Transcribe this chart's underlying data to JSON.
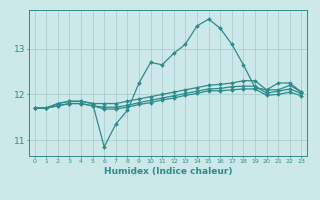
{
  "x": [
    0,
    1,
    2,
    3,
    4,
    5,
    6,
    7,
    8,
    9,
    10,
    11,
    12,
    13,
    14,
    15,
    16,
    17,
    18,
    19,
    20,
    21,
    22,
    23
  ],
  "line1": [
    11.7,
    11.7,
    11.8,
    11.85,
    11.85,
    11.8,
    10.85,
    11.35,
    11.65,
    12.25,
    12.7,
    12.65,
    12.9,
    13.1,
    13.5,
    13.65,
    13.45,
    13.1,
    12.65,
    12.15,
    12.1,
    12.25,
    12.25,
    12.05
  ],
  "line2": [
    11.7,
    11.7,
    11.8,
    11.85,
    11.85,
    11.8,
    11.8,
    11.8,
    11.85,
    11.9,
    11.95,
    12.0,
    12.05,
    12.1,
    12.15,
    12.2,
    12.22,
    12.25,
    12.3,
    12.3,
    12.1,
    12.1,
    12.2,
    12.05
  ],
  "line3": [
    11.7,
    11.7,
    11.75,
    11.8,
    11.8,
    11.75,
    11.72,
    11.72,
    11.76,
    11.82,
    11.87,
    11.92,
    11.97,
    12.02,
    12.07,
    12.12,
    12.13,
    12.17,
    12.18,
    12.18,
    12.03,
    12.07,
    12.12,
    12.02
  ],
  "line4": [
    11.7,
    11.7,
    11.75,
    11.8,
    11.8,
    11.75,
    11.68,
    11.68,
    11.72,
    11.78,
    11.82,
    11.88,
    11.92,
    11.98,
    12.02,
    12.08,
    12.08,
    12.1,
    12.12,
    12.12,
    11.98,
    12.0,
    12.05,
    11.97
  ],
  "line_color": "#2e8b8b",
  "bg_color": "#cce8e8",
  "grid_color": "#aad0d0",
  "xlabel": "Humidex (Indice chaleur)",
  "yticks": [
    11,
    12,
    13
  ],
  "xticks": [
    0,
    1,
    2,
    3,
    4,
    5,
    6,
    7,
    8,
    9,
    10,
    11,
    12,
    13,
    14,
    15,
    16,
    17,
    18,
    19,
    20,
    21,
    22,
    23
  ],
  "xlim": [
    -0.5,
    23.5
  ],
  "ylim": [
    10.65,
    13.85
  ]
}
